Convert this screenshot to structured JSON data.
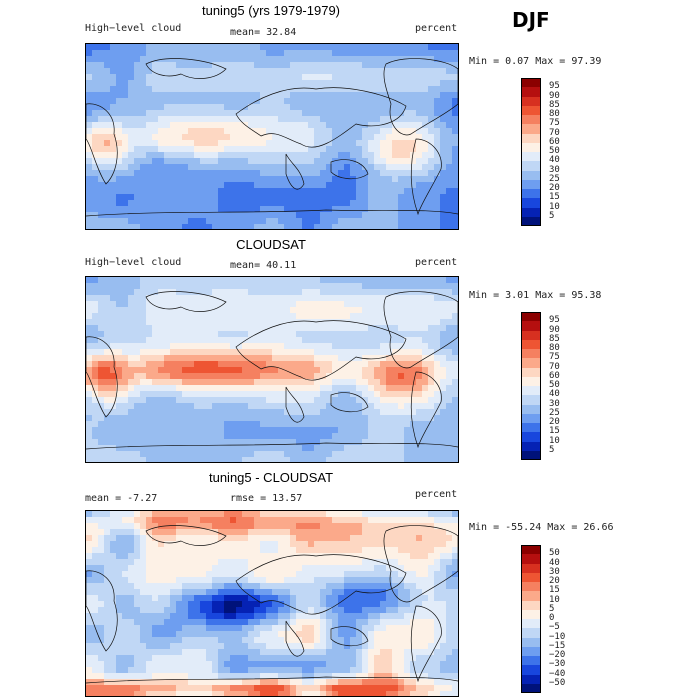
{
  "season": "DJF",
  "panels": [
    {
      "title": "tuning5 (yrs 1979-1979)",
      "left_label": "High−level cloud",
      "center_label": "mean=  32.84",
      "right_label": "percent",
      "minmax": "Min =   0.07 Max =  97.39",
      "colorbar": {
        "labels": [
          "95",
          "90",
          "85",
          "80",
          "75",
          "70",
          "60",
          "50",
          "40",
          "30",
          "25",
          "20",
          "15",
          "10",
          "5"
        ],
        "colors": [
          "#8b0000",
          "#b50f0f",
          "#d73020",
          "#ee5533",
          "#f58060",
          "#fba98a",
          "#fdd7c2",
          "#fdf1e6",
          "#e2ecf9",
          "#c0d7f5",
          "#98bdf0",
          "#6e9ef0",
          "#3d73ea",
          "#1846dd",
          "#0522b4",
          "#00127a"
        ]
      },
      "field": "cloud"
    },
    {
      "title": "CLOUDSAT",
      "left_label": "High−level cloud",
      "center_label": "mean=  40.11",
      "right_label": "percent",
      "minmax": "Min =   3.01 Max =  95.38",
      "colorbar": {
        "labels": [
          "95",
          "90",
          "85",
          "80",
          "75",
          "70",
          "60",
          "50",
          "40",
          "30",
          "25",
          "20",
          "15",
          "10",
          "5"
        ],
        "colors": [
          "#8b0000",
          "#b50f0f",
          "#d73020",
          "#ee5533",
          "#f58060",
          "#fba98a",
          "#fdd7c2",
          "#fdf1e6",
          "#e2ecf9",
          "#c0d7f5",
          "#98bdf0",
          "#6e9ef0",
          "#3d73ea",
          "#1846dd",
          "#0522b4",
          "#00127a"
        ]
      },
      "field": "cloudsat"
    },
    {
      "title": "tuning5 - CLOUDSAT",
      "left_label": "mean =   -7.27",
      "center_label": "rmse =  13.57",
      "right_label": "percent",
      "minmax": "Min = -55.24 Max =  26.66",
      "colorbar": {
        "labels": [
          "50",
          "40",
          "30",
          "20",
          "15",
          "10",
          "5",
          "0",
          "−5",
          "−10",
          "−15",
          "−20",
          "−30",
          "−40",
          "−50"
        ],
        "colors": [
          "#8b0000",
          "#b50f0f",
          "#d73020",
          "#ee5533",
          "#f58060",
          "#fba98a",
          "#fdd7c2",
          "#fdf1e6",
          "#e2ecf9",
          "#c0d7f5",
          "#98bdf0",
          "#6e9ef0",
          "#3d73ea",
          "#1846dd",
          "#0522b4",
          "#00127a"
        ]
      },
      "field": "diff"
    }
  ]
}
